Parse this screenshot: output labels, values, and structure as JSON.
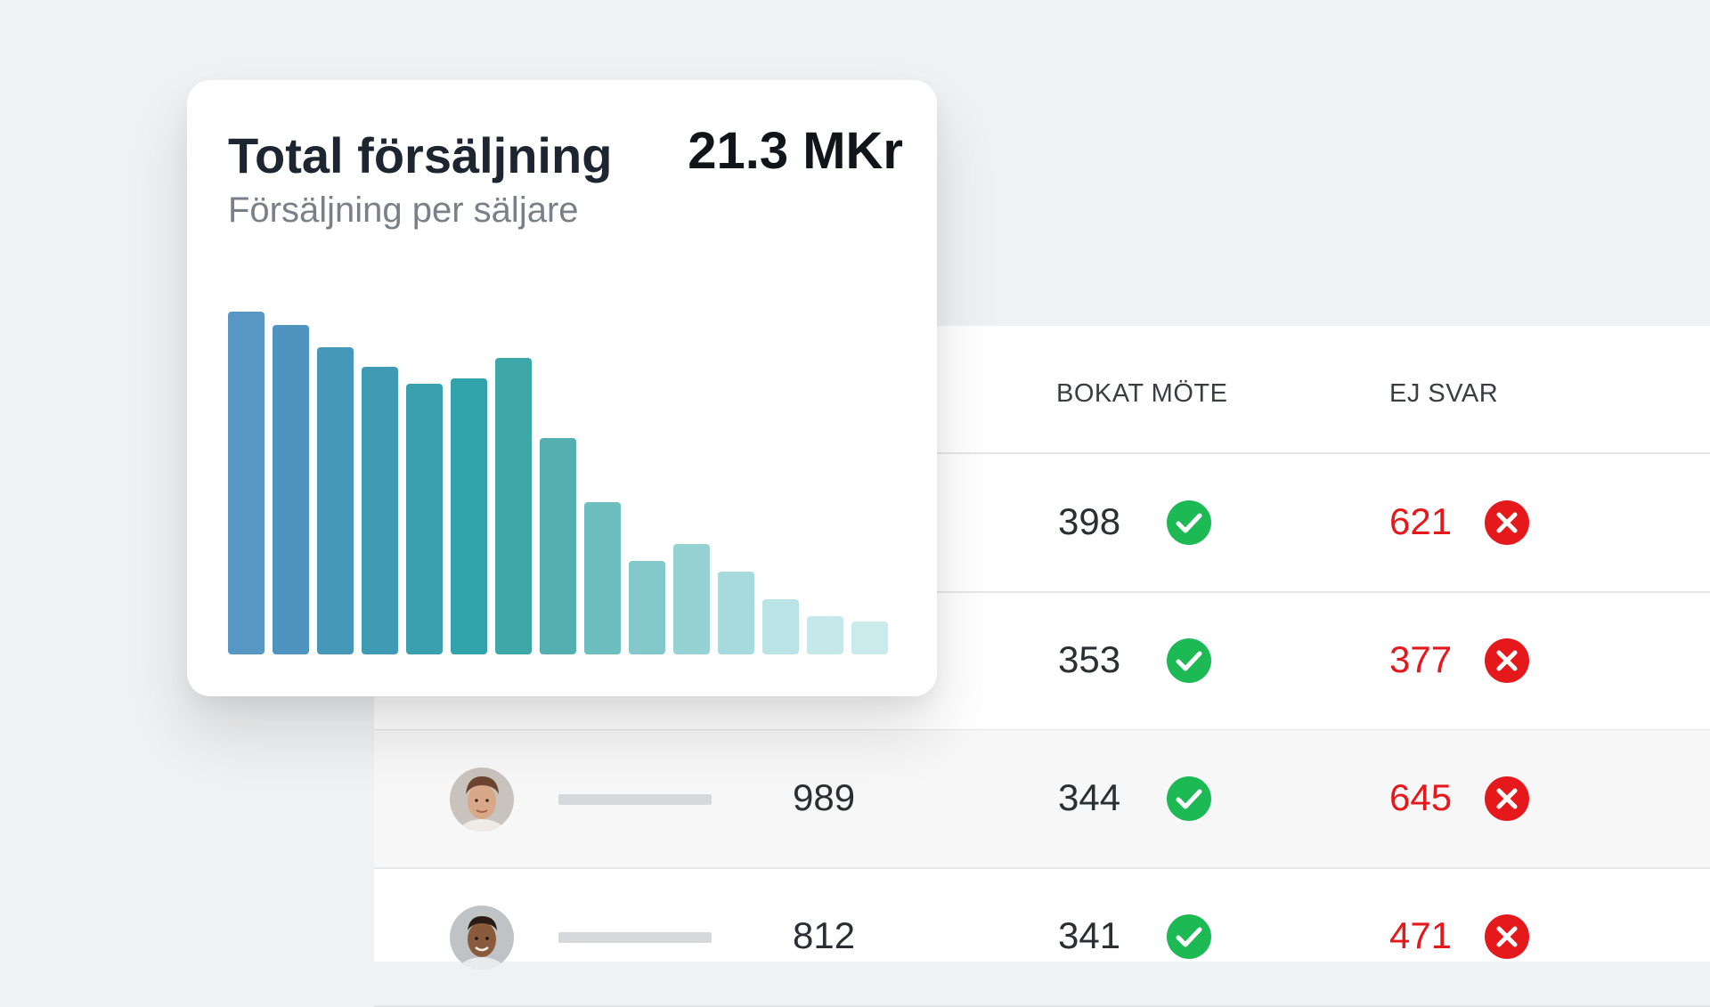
{
  "card": {
    "title": "Total försäljning",
    "subtitle": "Försäljning per säljare",
    "total": "21.3 MKr"
  },
  "chart_data": {
    "type": "bar",
    "values": [
      385,
      370,
      345,
      323,
      304,
      310,
      333,
      243,
      171,
      105,
      124,
      93,
      62,
      43,
      37
    ],
    "ylim": [
      0,
      400
    ],
    "colors": [
      "#5896c4",
      "#4e94bf",
      "#4698b8",
      "#3f9bb3",
      "#3a9fae",
      "#33a3ab",
      "#3ea8a8",
      "#54b0b0",
      "#6cbebf",
      "#83c8cb",
      "#96d2d4",
      "#a7dadc",
      "#bae3e5",
      "#c6e8ea",
      "#cbeaec"
    ]
  },
  "table": {
    "headers": {
      "booked": "BOKAT MÖTE",
      "no_answer": "EJ SVAR"
    },
    "rows": [
      {
        "total": "",
        "booked": "398",
        "no_answer": "621",
        "avatar": "none"
      },
      {
        "total": "",
        "booked": "353",
        "no_answer": "377",
        "avatar": "none"
      },
      {
        "total": "989",
        "booked": "344",
        "no_answer": "645",
        "avatar": "person-1"
      },
      {
        "total": "812",
        "booked": "341",
        "no_answer": "471",
        "avatar": "person-2"
      }
    ]
  },
  "icons": {
    "check": "check-circle-icon",
    "cross": "x-circle-icon"
  },
  "colors": {
    "check": "#1db955",
    "cross": "#e5191b",
    "red_text": "#e5191b"
  }
}
